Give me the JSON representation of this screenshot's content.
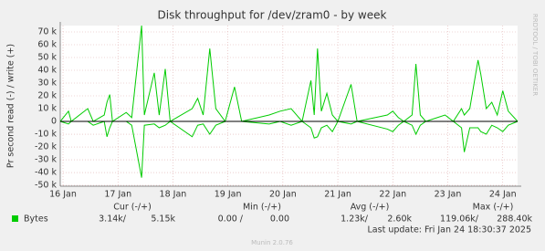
{
  "chart_data": {
    "type": "line",
    "title": "Disk throughput for /dev/zram0 - by week",
    "y_label": "Pr second read (-) / write (+)",
    "side_label": "RRDTOOL / TOBI OETIKER",
    "footer": "Munin 2.0.76",
    "last_update": "Last update: Fri Jan 24 18:30:37 2025",
    "x": [
      15.95,
      16.1,
      16.15,
      16.45,
      16.55,
      16.75,
      16.8,
      16.85,
      16.9,
      17.15,
      17.25,
      17.43,
      17.48,
      17.66,
      17.75,
      17.86,
      17.95,
      18.35,
      18.45,
      18.55,
      18.67,
      18.78,
      18.95,
      19.12,
      19.25,
      19.75,
      19.95,
      20.15,
      20.35,
      20.51,
      20.57,
      20.63,
      20.7,
      20.8,
      20.9,
      21.0,
      21.24,
      21.35,
      21.9,
      22.0,
      22.1,
      22.2,
      22.35,
      22.42,
      22.5,
      22.6,
      22.95,
      23.1,
      23.25,
      23.3,
      23.4,
      23.55,
      23.6,
      23.7,
      23.8,
      23.9,
      24.0,
      24.1,
      24.27
    ],
    "series": [
      {
        "name": "Bytes",
        "color": "#00cc00",
        "values": [
          0,
          8000,
          0,
          10000,
          0,
          5000,
          15000,
          21000,
          0,
          7000,
          3000,
          75000,
          5000,
          38000,
          5000,
          41000,
          0,
          10000,
          18000,
          5000,
          57000,
          10000,
          0,
          27000,
          0,
          5000,
          8000,
          10000,
          0,
          32000,
          5000,
          57000,
          8000,
          22000,
          5000,
          0,
          29000,
          0,
          5000,
          8000,
          3000,
          0,
          5000,
          45000,
          5000,
          0,
          5000,
          0,
          10000,
          5000,
          10000,
          48000,
          37000,
          10000,
          15000,
          5000,
          24000,
          8000,
          0
        ],
        "read_values": [
          0,
          -2000,
          0,
          0,
          -3000,
          0,
          -12000,
          -5000,
          0,
          0,
          -3000,
          -44000,
          -3000,
          -2000,
          -5000,
          -3000,
          0,
          -12000,
          -3000,
          -2000,
          -10000,
          -3000,
          0,
          0,
          0,
          -2000,
          0,
          -3000,
          0,
          -5000,
          -13000,
          -12000,
          -5000,
          -3000,
          -8000,
          0,
          -2000,
          0,
          -6000,
          -8000,
          -3000,
          0,
          -3000,
          -10000,
          -3000,
          0,
          0,
          0,
          -5000,
          -24000,
          -5000,
          -5000,
          -8000,
          -10000,
          -3000,
          -5000,
          -8000,
          -3000,
          0
        ]
      }
    ],
    "ylim": [
      -50700,
      75000
    ],
    "yticks": [
      {
        "value": -50000,
        "label": "-50 k"
      },
      {
        "value": -40000,
        "label": "-40 k"
      },
      {
        "value": -30000,
        "label": "-30 k"
      },
      {
        "value": -20000,
        "label": "-20 k"
      },
      {
        "value": -10000,
        "label": "-10 k"
      },
      0,
      {
        "value": 10000,
        "label": "10 k"
      },
      {
        "value": 20000,
        "label": "20 k"
      },
      {
        "value": 30000,
        "label": "30 k"
      },
      {
        "value": 40000,
        "label": "40 k"
      },
      {
        "value": 50000,
        "label": "50 k"
      },
      {
        "value": 60000,
        "label": "60 k"
      },
      {
        "value": 70000,
        "label": "70 k"
      }
    ],
    "xlim": [
      15.95,
      24.27
    ],
    "xticks": [
      {
        "value": 16,
        "label": "16 Jan"
      },
      {
        "value": 17,
        "label": "17 Jan"
      },
      {
        "value": 18,
        "label": "18 Jan"
      },
      {
        "value": 19,
        "label": "19 Jan"
      },
      {
        "value": 20,
        "label": "20 Jan"
      },
      {
        "value": 21,
        "label": "21 Jan"
      },
      {
        "value": 22,
        "label": "22 Jan"
      },
      {
        "value": 23,
        "label": "23 Jan"
      },
      {
        "value": 24,
        "label": "24 Jan"
      }
    ],
    "grid": true,
    "legend": {
      "headers": [
        "Cur (-/+)",
        "Min (-/+)",
        "Avg (-/+)",
        "Max (-/+)"
      ],
      "cells": [
        "3.14k/",
        "5.15k",
        "0.00 /",
        "0.00",
        "1.23k/",
        "2.60k",
        "119.06k/",
        "288.40k"
      ]
    }
  }
}
